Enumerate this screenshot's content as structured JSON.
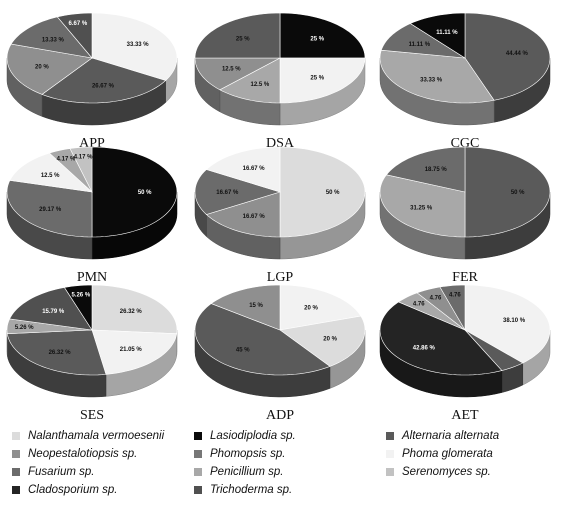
{
  "legend": [
    {
      "name": "Nalanthamala vermoesenii",
      "color": "#dcdcdc"
    },
    {
      "name": "Lasiodiplodia sp.",
      "color": "#0a0a0a"
    },
    {
      "name": "Alternaria alternata",
      "color": "#5a5a5a"
    },
    {
      "name": "Neopestalotiopsis sp.",
      "color": "#8f8f8f"
    },
    {
      "name": "Phomopsis sp.",
      "color": "#777777"
    },
    {
      "name": "Phoma glomerata",
      "color": "#f2f2f2"
    },
    {
      "name": "Fusarium sp.",
      "color": "#6b6b6b"
    },
    {
      "name": "Penicillium sp.",
      "color": "#a8a8a8"
    },
    {
      "name": "Serenomyces sp.",
      "color": "#c2c2c2"
    },
    {
      "name": "Cladosporium sp.",
      "color": "#242424"
    },
    {
      "name": "Trichoderma sp.",
      "color": "#505050"
    }
  ],
  "chart_data": [
    {
      "type": "pie",
      "title": "APP",
      "slices": [
        {
          "series": "Phoma glomerata",
          "label": "33.33 %",
          "value": 33.33
        },
        {
          "series": "Alternaria alternata",
          "label": "26.67 %",
          "value": 26.67
        },
        {
          "series": "Neopestalotiopsis sp.",
          "label": "20 %",
          "value": 20
        },
        {
          "series": "Fusarium sp.",
          "label": "13.33 %",
          "value": 13.33
        },
        {
          "series": "Trichoderma sp.",
          "label": "6.67 %",
          "value": 6.67
        }
      ]
    },
    {
      "type": "pie",
      "title": "DSA",
      "slices": [
        {
          "series": "Lasiodiplodia sp.",
          "label": "25 %",
          "value": 25
        },
        {
          "series": "Phoma glomerata",
          "label": "25 %",
          "value": 25
        },
        {
          "series": "Penicillium sp.",
          "label": "12.5 %",
          "value": 12.5
        },
        {
          "series": "Neopestalotiopsis sp.",
          "label": "12.5 %",
          "value": 12.5
        },
        {
          "series": "Alternaria alternata",
          "label": "25 %",
          "value": 25
        }
      ]
    },
    {
      "type": "pie",
      "title": "CGC",
      "slices": [
        {
          "series": "Alternaria alternata",
          "label": "44.44 %",
          "value": 44.44
        },
        {
          "series": "Penicillium sp.",
          "label": "33.33 %",
          "value": 33.33
        },
        {
          "series": "Fusarium sp.",
          "label": "11.11 %",
          "value": 11.11
        },
        {
          "series": "Lasiodiplodia sp.",
          "label": "11.11 %",
          "value": 11.11
        }
      ]
    },
    {
      "type": "pie",
      "title": "PMN",
      "slices": [
        {
          "series": "Lasiodiplodia sp.",
          "label": "50 %",
          "value": 50
        },
        {
          "series": "Fusarium sp.",
          "label": "29.17 %",
          "value": 29.17
        },
        {
          "series": "Phoma glomerata",
          "label": "12.5 %",
          "value": 12.5
        },
        {
          "series": "Penicillium sp.",
          "label": "4.17 %",
          "value": 4.17
        },
        {
          "series": "Serenomyces sp.",
          "label": "4.17 %",
          "value": 4.17
        }
      ]
    },
    {
      "type": "pie",
      "title": "LGP",
      "slices": [
        {
          "series": "Nalanthamala vermoesenii",
          "label": "50 %",
          "value": 50
        },
        {
          "series": "Neopestalotiopsis sp.",
          "label": "16.67 %",
          "value": 16.67
        },
        {
          "series": "Fusarium sp.",
          "label": "16.67 %",
          "value": 16.67
        },
        {
          "series": "Phoma glomerata",
          "label": "16.67 %",
          "value": 16.67
        }
      ]
    },
    {
      "type": "pie",
      "title": "FER",
      "slices": [
        {
          "series": "Alternaria alternata",
          "label": "50 %",
          "value": 50
        },
        {
          "series": "Penicillium sp.",
          "label": "31.25 %",
          "value": 31.25
        },
        {
          "series": "Phoma glomerata",
          "label": "",
          "value": 0
        },
        {
          "series": "Fusarium sp.",
          "label": "18.75 %",
          "value": 18.75
        }
      ]
    },
    {
      "type": "pie",
      "title": "SES",
      "slices": [
        {
          "series": "Nalanthamala vermoesenii",
          "label": "26.32 %",
          "value": 26.32
        },
        {
          "series": "Phoma glomerata",
          "label": "21.05 %",
          "value": 21.05
        },
        {
          "series": "Alternaria alternata",
          "label": "26.32 %",
          "value": 26.32
        },
        {
          "series": "Penicillium sp.",
          "label": "5.26 %",
          "value": 5.26
        },
        {
          "series": "Trichoderma sp.",
          "label": "15.79 %",
          "value": 15.79
        },
        {
          "series": "Lasiodiplodia sp.",
          "label": "5.26 %",
          "value": 5.26
        }
      ]
    },
    {
      "type": "pie",
      "title": "ADP",
      "slices": [
        {
          "series": "Phoma glomerata",
          "label": "20 %",
          "value": 20
        },
        {
          "series": "Nalanthamala vermoesenii",
          "label": "20 %",
          "value": 20
        },
        {
          "series": "Alternaria alternata",
          "label": "45 %",
          "value": 45
        },
        {
          "series": "Neopestalotiopsis sp.",
          "label": "15 %",
          "value": 15
        }
      ]
    },
    {
      "type": "pie",
      "title": "AET",
      "slices": [
        {
          "series": "Phoma glomerata",
          "label": "38.10 %",
          "value": 38.1
        },
        {
          "series": "Alternaria alternata",
          "label": "",
          "value": 4.76
        },
        {
          "series": "Cladosporium sp.",
          "label": "42.86 %",
          "value": 42.86
        },
        {
          "series": "Penicillium sp.",
          "label": "4.76",
          "value": 4.76
        },
        {
          "series": "Neopestalotiopsis sp.",
          "label": "4.76",
          "value": 4.76
        },
        {
          "series": "Fusarium sp.",
          "label": "4.76",
          "value": 4.76
        }
      ]
    }
  ]
}
